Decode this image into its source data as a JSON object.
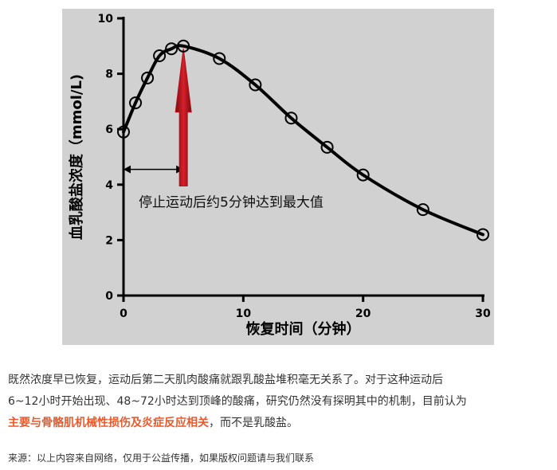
{
  "chart_data": {
    "type": "scatter",
    "xlabel": "恢复时间（分钟）",
    "ylabel": "血乳酸盐浓度（mmol/L)",
    "xlim": [
      0,
      30
    ],
    "ylim": [
      0,
      10
    ],
    "xticks": [
      0,
      10,
      20,
      30
    ],
    "yticks": [
      0,
      2,
      4,
      6,
      8,
      10
    ],
    "x_tick_labels": [
      "0",
      "10",
      "20",
      "30"
    ],
    "y_tick_labels": [
      "0",
      "2",
      "4",
      "6",
      "8",
      "10"
    ],
    "grid": false,
    "series": [
      {
        "marker": "open-circle",
        "fit": "smooth-curve",
        "x": [
          0,
          1,
          2,
          3,
          4,
          5,
          8,
          11,
          14,
          17,
          20,
          25,
          30
        ],
        "y": [
          5.9,
          6.95,
          7.85,
          8.65,
          8.9,
          9.0,
          8.55,
          7.6,
          6.4,
          5.35,
          4.35,
          3.1,
          2.2
        ]
      }
    ],
    "annotations": {
      "peak_label": "停止运动后约5分钟达到最大值",
      "peak_x": 5,
      "peak_y": 9.0,
      "arrow_color": "#b0141c"
    }
  },
  "article": {
    "line1": "既然浓度早已恢复，运动后第二天肌肉酸痛就跟乳酸盐堆积毫无关系了。对于这种运动后",
    "line2": "6~12小时开始出现、48~72小时达到顶峰的酸痛，研究仍然没有探明其中的机制，目前认为",
    "highlight": "主要与骨骼肌机械性损伤及炎症反应相关",
    "line3_rest": "，而不是乳酸盐。",
    "highlight_color": "#e85a2c"
  },
  "source": "来源：以上内容来自网络，仅用于公益传播，如果版权问题请与我们联系"
}
